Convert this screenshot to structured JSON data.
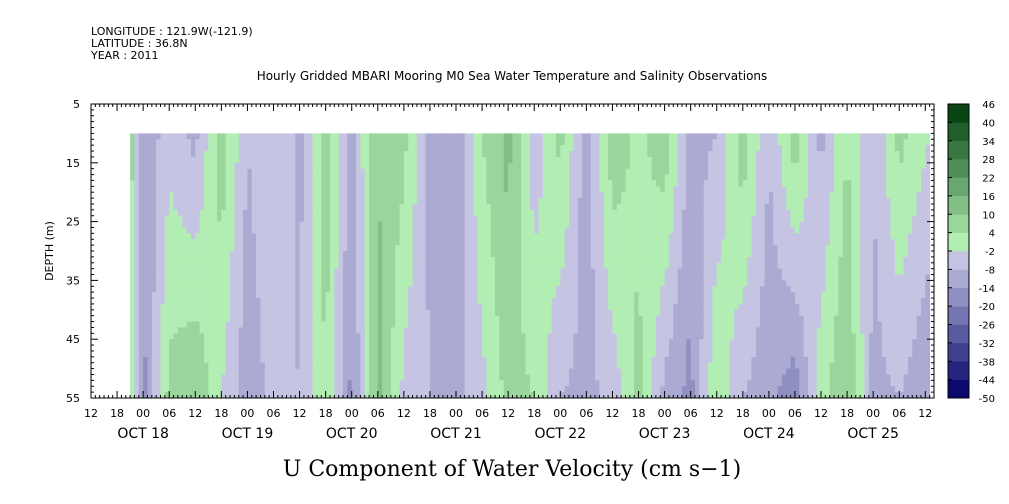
{
  "header": {
    "longitude": "LONGITUDE : 121.9W(-121.9)",
    "latitude": "LATITUDE : 36.8N",
    "year": "YEAR : 2011"
  },
  "chart_data": {
    "type": "heatmap",
    "title": "Hourly Gridded MBARI Mooring M0 Sea Water Temperature and Salinity Observations",
    "xlabel": "U Component of Water Velocity (cm s−1)",
    "ylabel": "DEPTH (m)",
    "ylim": [
      55,
      5
    ],
    "y_reversed": true,
    "yticks": [
      5,
      15,
      25,
      35,
      45,
      55
    ],
    "data_depth_range": [
      10,
      55
    ],
    "xrange_hours": [
      "2011-10-17T12:00",
      "2011-10-25T14:00"
    ],
    "data_time_range": [
      "2011-10-17T21:00",
      "2011-10-25T13:00"
    ],
    "hour_tick_labels": [
      "12",
      "18",
      "00",
      "06",
      "12",
      "18",
      "00",
      "06",
      "12",
      "18",
      "00",
      "06",
      "12",
      "18",
      "00",
      "06",
      "12",
      "18",
      "00",
      "06",
      "12",
      "18",
      "00",
      "06",
      "12",
      "18",
      "00",
      "06",
      "12",
      "18",
      "00",
      "06",
      "12"
    ],
    "day_labels": [
      "OCT 18",
      "OCT 19",
      "OCT 20",
      "OCT 21",
      "OCT 22",
      "OCT 23",
      "OCT 24",
      "OCT 25"
    ],
    "colorbar": {
      "levels": [
        -50,
        -44,
        -38,
        -32,
        -26,
        -20,
        -14,
        -8,
        -2,
        4,
        10,
        16,
        22,
        28,
        34,
        40,
        46
      ],
      "label_values": [
        "46",
        "40",
        "34",
        "28",
        "22",
        "16",
        "10",
        "4",
        "-2",
        "-8",
        "-14",
        "-20",
        "-26",
        "-32",
        "-38",
        "-44",
        "-50"
      ]
    },
    "velocity_pattern": [
      {
        "time": "2011-10-17T21:00",
        "shallow": 8,
        "deep": 6
      },
      {
        "time": "2011-10-18T00:00",
        "shallow": -14,
        "deep": -16
      },
      {
        "time": "2011-10-18T06:00",
        "shallow": -4,
        "deep": 6
      },
      {
        "time": "2011-10-18T12:00",
        "shallow": -10,
        "deep": 10
      },
      {
        "time": "2011-10-18T18:00",
        "shallow": 8,
        "deep": -2
      },
      {
        "time": "2011-10-19T00:00",
        "shallow": -8,
        "deep": -12
      },
      {
        "time": "2011-10-19T06:00",
        "shallow": -2,
        "deep": -6
      },
      {
        "time": "2011-10-19T12:00",
        "shallow": -10,
        "deep": -8
      },
      {
        "time": "2011-10-19T18:00",
        "shallow": 8,
        "deep": 4
      },
      {
        "time": "2011-10-20T00:00",
        "shallow": -10,
        "deep": -16
      },
      {
        "time": "2011-10-20T06:00",
        "shallow": 10,
        "deep": 12
      },
      {
        "time": "2011-10-20T12:00",
        "shallow": 6,
        "deep": -4
      },
      {
        "time": "2011-10-20T18:00",
        "shallow": -10,
        "deep": -8
      },
      {
        "time": "2011-10-21T00:00",
        "shallow": -14,
        "deep": -10
      },
      {
        "time": "2011-10-21T06:00",
        "shallow": 4,
        "deep": -4
      },
      {
        "time": "2011-10-21T12:00",
        "shallow": 12,
        "deep": 6
      },
      {
        "time": "2011-10-21T18:00",
        "shallow": -6,
        "deep": 4
      },
      {
        "time": "2011-10-22T00:00",
        "shallow": 6,
        "deep": -8
      },
      {
        "time": "2011-10-22T06:00",
        "shallow": -12,
        "deep": -10
      },
      {
        "time": "2011-10-22T12:00",
        "shallow": 8,
        "deep": -6
      },
      {
        "time": "2011-10-22T18:00",
        "shallow": 2,
        "deep": 6
      },
      {
        "time": "2011-10-23T00:00",
        "shallow": 8,
        "deep": -10
      },
      {
        "time": "2011-10-23T06:00",
        "shallow": -10,
        "deep": -16
      },
      {
        "time": "2011-10-23T12:00",
        "shallow": -8,
        "deep": 4
      },
      {
        "time": "2011-10-23T18:00",
        "shallow": 8,
        "deep": -8
      },
      {
        "time": "2011-10-24T00:00",
        "shallow": -8,
        "deep": -12
      },
      {
        "time": "2011-10-24T06:00",
        "shallow": 8,
        "deep": -18
      },
      {
        "time": "2011-10-24T12:00",
        "shallow": -10,
        "deep": 2
      },
      {
        "time": "2011-10-24T18:00",
        "shallow": 4,
        "deep": 10
      },
      {
        "time": "2011-10-25T00:00",
        "shallow": -8,
        "deep": -10
      },
      {
        "time": "2011-10-25T06:00",
        "shallow": 6,
        "deep": -8
      },
      {
        "time": "2011-10-25T13:00",
        "shallow": -2,
        "deep": -14
      }
    ]
  }
}
